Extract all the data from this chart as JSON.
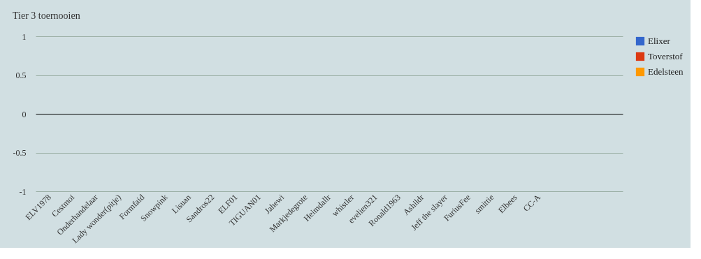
{
  "chart_data": {
    "type": "bar",
    "title": "Tier 3 toernooien",
    "categories": [
      "ELV1978",
      "Cestmoi",
      "Onderhandelaar",
      "Lady wonder(pitje)",
      "Formfaid",
      "Snowpink",
      "Lisuan",
      "Sandros22",
      "ELF01",
      "TIGUAN01",
      "Jahewi",
      "Markjedegrote",
      "Heimdallr",
      "whistler",
      "evelien321",
      "Ronald1963",
      "Ashildr",
      "Jeff the slayer",
      "FuriusFee",
      "smittie",
      "Elbees",
      "CC-A",
      null,
      null,
      null
    ],
    "series": [
      {
        "name": "Elixer",
        "color": "#3366cc",
        "values": [
          0,
          0,
          0,
          0,
          0,
          0,
          0,
          0,
          0,
          0,
          0,
          0,
          0,
          0,
          0,
          0,
          0,
          0,
          0,
          0,
          0,
          0,
          0,
          0,
          0
        ]
      },
      {
        "name": "Toverstof",
        "color": "#dc3912",
        "values": [
          0,
          0,
          0,
          0,
          0,
          0,
          0,
          0,
          0,
          0,
          0,
          0,
          0,
          0,
          0,
          0,
          0,
          0,
          0,
          0,
          0,
          0,
          0,
          0,
          0
        ]
      },
      {
        "name": "Edelsteen",
        "color": "#ff9900",
        "values": [
          0,
          0,
          0,
          0,
          0,
          0,
          0,
          0,
          0,
          0,
          0,
          0,
          0,
          0,
          0,
          0,
          0,
          0,
          0,
          0,
          0,
          0,
          0,
          0,
          0
        ]
      }
    ],
    "ylim": [
      -1,
      1
    ],
    "yticks": [
      -1,
      -0.5,
      0,
      0.5,
      1
    ],
    "grid": "y",
    "legend": "right"
  }
}
